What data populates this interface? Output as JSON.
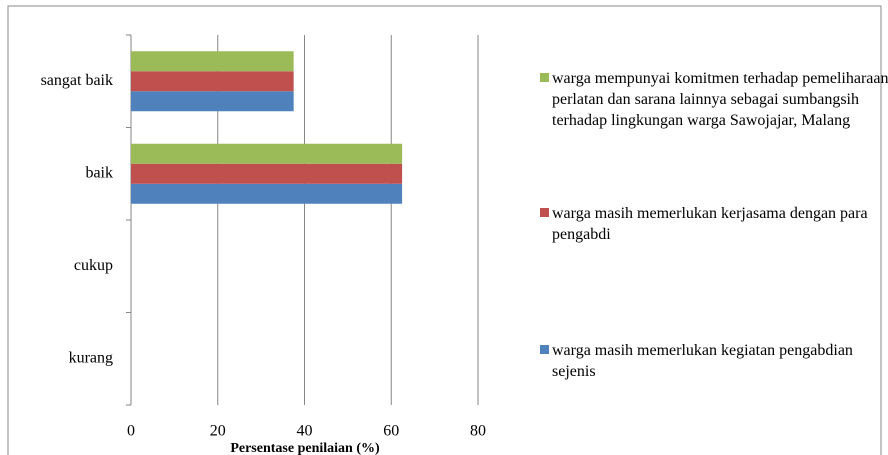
{
  "chart_data": {
    "type": "hbar",
    "x_label": "Persentase penilaian (%)",
    "categories": [
      "kurang",
      "cukup",
      "baik",
      "sangat baik"
    ],
    "series": [
      {
        "name": "warga masih memerlukan kegiatan pengabdian sejenis",
        "color": "#4f81bd",
        "values": [
          0,
          0,
          62.5,
          37.5
        ]
      },
      {
        "name": "warga masih memerlukan kerjasama dengan para pengabdi",
        "color": "#c0504d",
        "values": [
          0,
          0,
          62.5,
          37.5
        ]
      },
      {
        "name": "warga mempunyai komitmen terhadap pemeliharaan perlatan dan sarana lainnya sebagai sumbangsih  terhadap lingkungan warga Sawojajar, Malang",
        "color": "#9bbb59",
        "values": [
          0,
          0,
          62.5,
          37.5
        ]
      }
    ],
    "xlim": [
      0,
      80
    ],
    "xticks": [
      0,
      20,
      40,
      60,
      80
    ],
    "grid": true,
    "legend": "right"
  }
}
